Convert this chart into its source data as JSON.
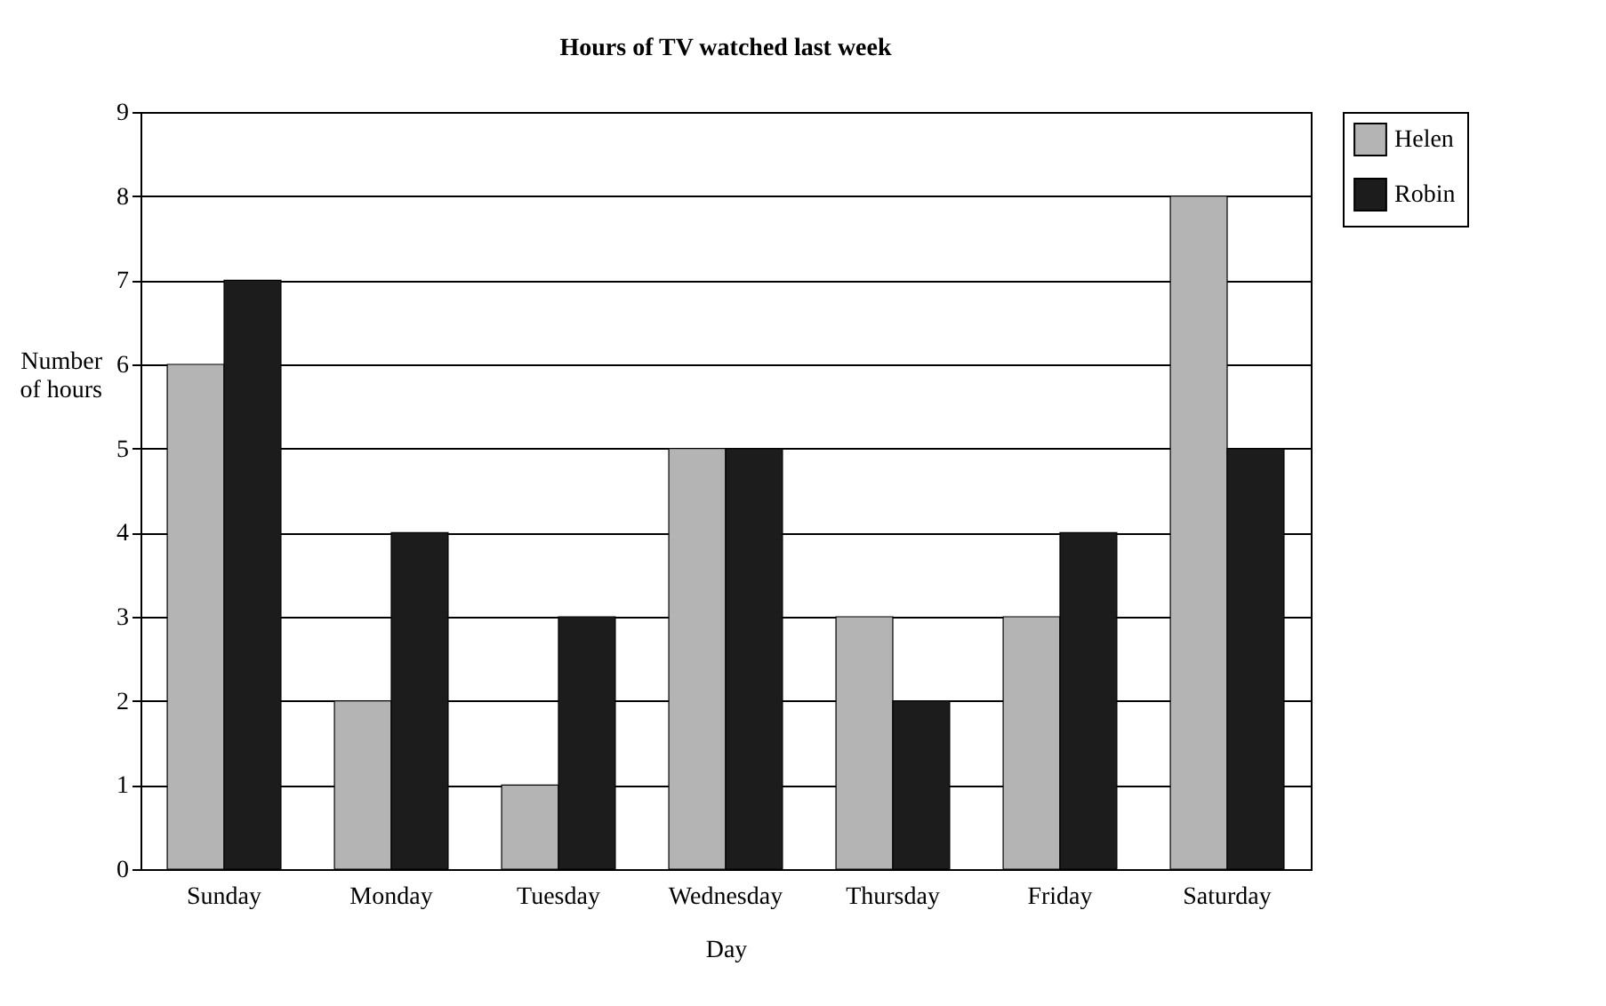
{
  "chart_data": {
    "type": "bar",
    "title": "Hours of TV watched last week",
    "xlabel": "Day",
    "ylabel": "Number of hours",
    "categories": [
      "Sunday",
      "Monday",
      "Tuesday",
      "Wednesday",
      "Thursday",
      "Friday",
      "Saturday"
    ],
    "series": [
      {
        "name": "Helen",
        "color": "#b4b4b4",
        "values": [
          6,
          2,
          1,
          5,
          3,
          3,
          8
        ]
      },
      {
        "name": "Robin",
        "color": "#1c1c1c",
        "values": [
          7,
          4,
          3,
          5,
          2,
          4,
          5
        ]
      }
    ],
    "ylim": [
      0,
      9
    ],
    "yticks": [
      0,
      1,
      2,
      3,
      4,
      5,
      6,
      7,
      8,
      9
    ],
    "grid": "y",
    "legend": "right"
  }
}
